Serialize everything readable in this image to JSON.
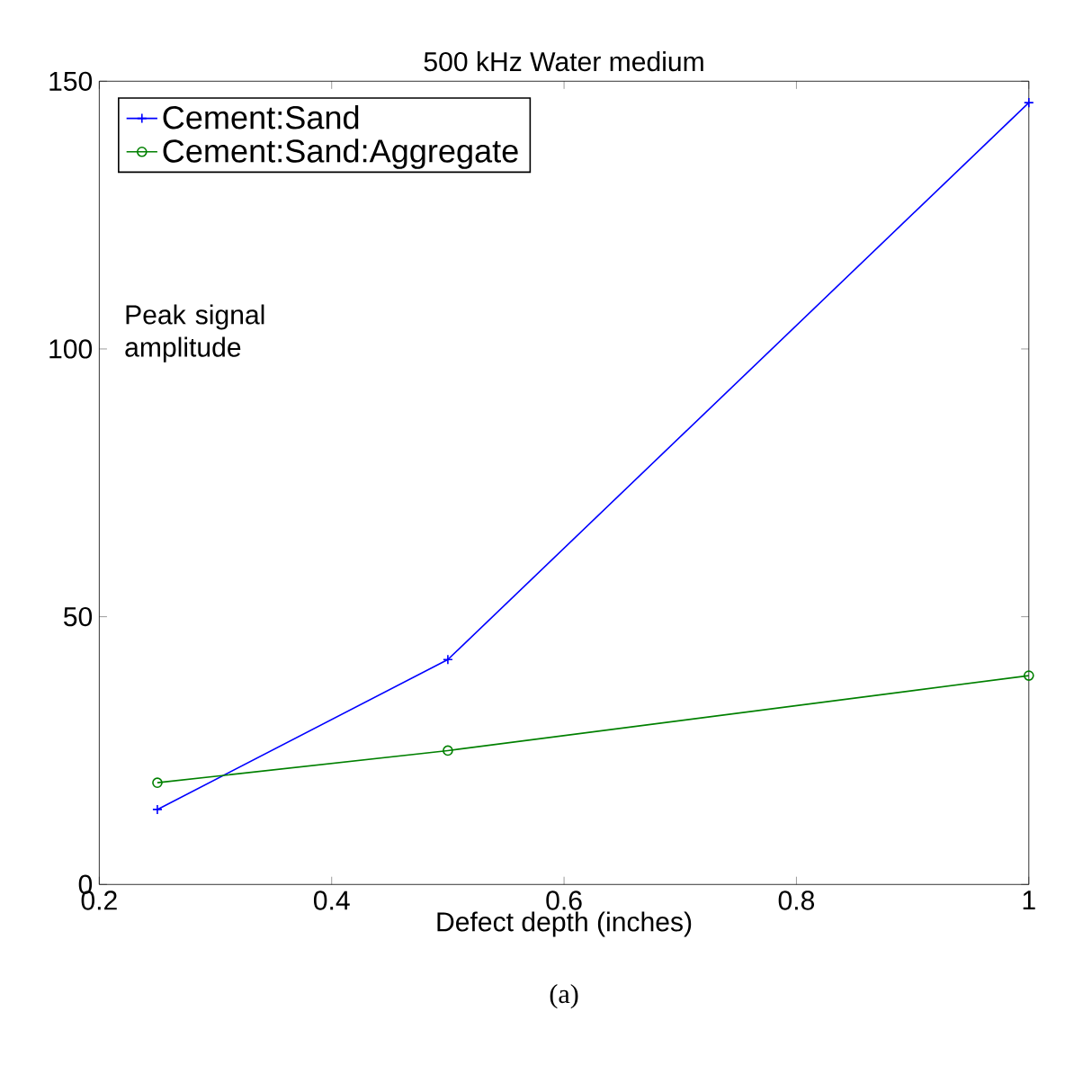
{
  "chart_data": {
    "type": "line",
    "title": "500 kHz Water medium",
    "xlabel": "Defect depth (inches)",
    "ylabel": "Peak signal amplitude",
    "annotations": [
      "(a)"
    ],
    "xlim": [
      0.2,
      1
    ],
    "xticks": [
      0.2,
      0.4,
      0.6,
      0.8,
      1
    ],
    "ylim": [
      0,
      150
    ],
    "yticks": [
      0,
      50,
      100,
      150
    ],
    "legend": "top left",
    "grid": false,
    "series": [
      {
        "name": "Cement:Sand",
        "color": "#0000ff",
        "marker": "cross",
        "x": [
          0.25,
          0.5,
          1
        ],
        "values": [
          14,
          42,
          146
        ]
      },
      {
        "name": "Cement:Sand:Aggregate",
        "color": "#008000",
        "marker": "circle",
        "x": [
          0.25,
          0.5,
          1
        ],
        "values": [
          19,
          25,
          39
        ]
      }
    ]
  }
}
